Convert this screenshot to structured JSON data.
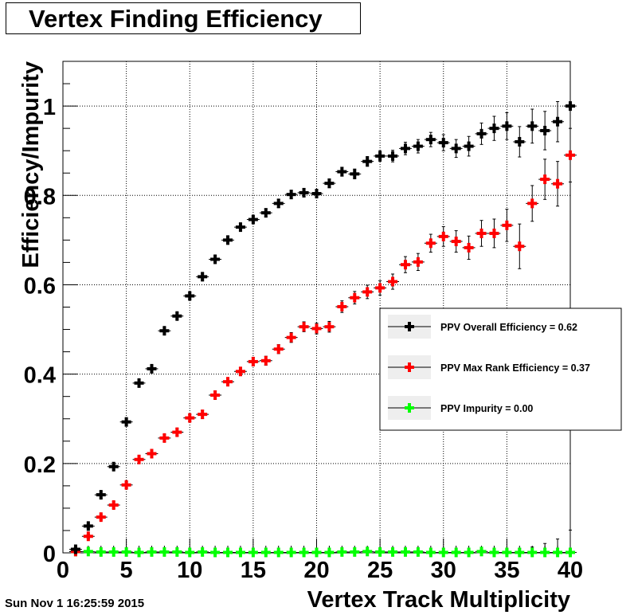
{
  "title": "Vertex Finding Efficiency",
  "timestamp": "Sun Nov  1 16:25:59 2015",
  "colors": {
    "overall": "#000000",
    "maxrank": "#ff0000",
    "impurity": "#00ff00",
    "frame": "#000000",
    "grid": "#000000"
  },
  "chart_data": {
    "type": "scatter",
    "title": "Vertex Finding Efficiency",
    "xlabel": "Vertex Track Multiplicity",
    "ylabel": "Efficiency/Impurity",
    "xlim": [
      0,
      40
    ],
    "ylim": [
      0,
      1.1
    ],
    "x_ticks": [
      0,
      5,
      10,
      15,
      20,
      25,
      30,
      35,
      40
    ],
    "y_ticks": [
      0,
      0.2,
      0.4,
      0.6,
      0.8,
      1
    ],
    "y_tick_labels": [
      "0",
      "0.2",
      "0.4",
      "0.6",
      "0.8",
      "1"
    ],
    "grid": true,
    "legend_position": "right",
    "series": [
      {
        "name": "PPV Overall Efficiency = 0.62",
        "color": "#000000",
        "x": [
          1,
          2,
          3,
          4,
          5,
          6,
          7,
          8,
          9,
          10,
          11,
          12,
          13,
          14,
          15,
          16,
          17,
          18,
          19,
          20,
          21,
          22,
          23,
          24,
          25,
          26,
          27,
          28,
          29,
          30,
          31,
          32,
          33,
          34,
          35,
          36,
          37,
          38,
          39,
          40
        ],
        "y": [
          0.008,
          0.06,
          0.13,
          0.193,
          0.293,
          0.38,
          0.412,
          0.497,
          0.53,
          0.575,
          0.618,
          0.657,
          0.7,
          0.729,
          0.746,
          0.761,
          0.782,
          0.802,
          0.806,
          0.804,
          0.827,
          0.853,
          0.848,
          0.876,
          0.888,
          0.888,
          0.905,
          0.91,
          0.925,
          0.918,
          0.905,
          0.91,
          0.938,
          0.95,
          0.955,
          0.92,
          0.955,
          0.945,
          0.965,
          1.0
        ],
        "err": [
          0.004,
          0.006,
          0.007,
          0.007,
          0.007,
          0.007,
          0.007,
          0.007,
          0.007,
          0.008,
          0.008,
          0.008,
          0.008,
          0.008,
          0.008,
          0.009,
          0.009,
          0.009,
          0.009,
          0.009,
          0.01,
          0.01,
          0.011,
          0.011,
          0.012,
          0.013,
          0.014,
          0.015,
          0.016,
          0.018,
          0.02,
          0.022,
          0.024,
          0.027,
          0.03,
          0.034,
          0.038,
          0.043,
          0.045,
          0.0
        ]
      },
      {
        "name": "PPV Max Rank Efficiency = 0.37",
        "color": "#ff0000",
        "x": [
          1,
          2,
          3,
          4,
          5,
          6,
          7,
          8,
          9,
          10,
          11,
          12,
          13,
          14,
          15,
          16,
          17,
          18,
          19,
          20,
          21,
          22,
          23,
          24,
          25,
          26,
          27,
          28,
          29,
          30,
          31,
          32,
          33,
          34,
          35,
          36,
          37,
          38,
          39,
          40
        ],
        "y": [
          0.003,
          0.037,
          0.08,
          0.107,
          0.152,
          0.209,
          0.222,
          0.257,
          0.27,
          0.302,
          0.31,
          0.353,
          0.383,
          0.406,
          0.428,
          0.43,
          0.456,
          0.482,
          0.506,
          0.502,
          0.506,
          0.551,
          0.571,
          0.584,
          0.593,
          0.607,
          0.645,
          0.651,
          0.693,
          0.708,
          0.697,
          0.683,
          0.715,
          0.715,
          0.733,
          0.686,
          0.782,
          0.836,
          0.826,
          0.89
        ],
        "err": [
          0.002,
          0.005,
          0.006,
          0.007,
          0.007,
          0.008,
          0.008,
          0.008,
          0.008,
          0.008,
          0.009,
          0.009,
          0.009,
          0.009,
          0.009,
          0.01,
          0.01,
          0.011,
          0.011,
          0.012,
          0.012,
          0.013,
          0.014,
          0.015,
          0.016,
          0.017,
          0.018,
          0.019,
          0.02,
          0.022,
          0.024,
          0.026,
          0.029,
          0.032,
          0.036,
          0.05,
          0.04,
          0.045,
          0.05,
          0.06
        ]
      },
      {
        "name": "PPV Impurity = 0.00",
        "color": "#00ff00",
        "x": [
          1,
          2,
          3,
          4,
          5,
          6,
          7,
          8,
          9,
          10,
          11,
          12,
          13,
          14,
          15,
          16,
          17,
          18,
          19,
          20,
          21,
          22,
          23,
          24,
          25,
          26,
          27,
          28,
          29,
          30,
          31,
          32,
          33,
          34,
          35,
          36,
          37,
          38,
          39,
          40
        ],
        "y": [
          0.003,
          0.003,
          0.002,
          0.002,
          0.002,
          0.001,
          0.002,
          0.002,
          0.002,
          0.001,
          0.002,
          0.001,
          0.001,
          0.001,
          0.001,
          0.001,
          0.001,
          0.001,
          0.001,
          0.001,
          0.001,
          0.002,
          0.002,
          0.003,
          0.002,
          0.002,
          0.002,
          0.002,
          0.001,
          0.001,
          0.001,
          0.001,
          0.003,
          0.001,
          0.001,
          0.001,
          0.001,
          0.001,
          0.001,
          0.001
        ],
        "err": [
          0.002,
          0.001,
          0.001,
          0.001,
          0.001,
          0.001,
          0.001,
          0.001,
          0.001,
          0.001,
          0.001,
          0.001,
          0.001,
          0.001,
          0.001,
          0.001,
          0.001,
          0.001,
          0.001,
          0.001,
          0.001,
          0.002,
          0.002,
          0.003,
          0.002,
          0.002,
          0.002,
          0.002,
          0.002,
          0.002,
          0.003,
          0.003,
          0.005,
          0.005,
          0.006,
          0.008,
          0.012,
          0.02,
          0.03,
          0.05
        ]
      }
    ]
  }
}
